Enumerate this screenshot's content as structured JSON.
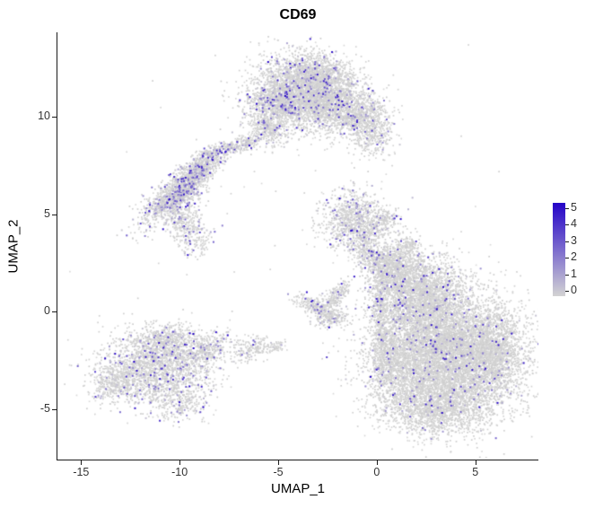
{
  "chart_data": {
    "type": "scatter",
    "title": "CD69",
    "xlabel": "UMAP_1",
    "ylabel": "UMAP_2",
    "xlim": [
      -16.2,
      8.2
    ],
    "ylim": [
      -7.6,
      14.35
    ],
    "x_ticks": [
      -15,
      -10,
      -5,
      0,
      5
    ],
    "y_ticks": [
      -5,
      0,
      5,
      10
    ],
    "grid": false,
    "legend_position": "right",
    "point_color_low": "#d3d3d3",
    "point_color_high": "#2403c8",
    "legend": {
      "tick_values": [
        5,
        4,
        3,
        2,
        1,
        0
      ],
      "vmin": 0,
      "vmax": 5
    },
    "clusters": [
      {
        "cx": -3.8,
        "cy": 11.3,
        "sx": 1.25,
        "sy": 0.95,
        "rot": 0,
        "n": 2600,
        "expr": 0.1
      },
      {
        "cx": -2.2,
        "cy": 10.7,
        "sx": 0.85,
        "sy": 0.7,
        "rot": 0,
        "n": 1000,
        "expr": 0.09
      },
      {
        "cx": -5.1,
        "cy": 10.6,
        "sx": 0.75,
        "sy": 0.6,
        "rot": 0,
        "n": 650,
        "expr": 0.09
      },
      {
        "cx": -3.0,
        "cy": 12.2,
        "sx": 0.95,
        "sy": 0.5,
        "rot": 0,
        "n": 550,
        "expr": 0.08
      },
      {
        "cx": -5.6,
        "cy": 9.4,
        "sx": 0.5,
        "sy": 0.35,
        "rot": -30,
        "n": 250,
        "expr": 0.1
      },
      {
        "cx": -0.35,
        "cy": 9.6,
        "sx": 0.55,
        "sy": 0.8,
        "rot": 10,
        "n": 700,
        "expr": 0.05
      },
      {
        "cx": -1.3,
        "cy": 9.9,
        "sx": 0.4,
        "sy": 0.3,
        "rot": 0,
        "n": 160,
        "expr": 0.06
      },
      {
        "cx": -10.0,
        "cy": 6.2,
        "sx": 1.15,
        "sy": 0.38,
        "rot": 42,
        "n": 1500,
        "expr": 0.2
      },
      {
        "cx": -8.7,
        "cy": 7.6,
        "sx": 0.6,
        "sy": 0.28,
        "rot": 35,
        "n": 350,
        "expr": 0.16
      },
      {
        "cx": -7.2,
        "cy": 8.5,
        "sx": 0.85,
        "sy": 0.22,
        "rot": 18,
        "n": 300,
        "expr": 0.12
      },
      {
        "cx": -9.7,
        "cy": 4.6,
        "sx": 0.45,
        "sy": 0.5,
        "rot": 0,
        "n": 250,
        "expr": 0.12
      },
      {
        "cx": -9.2,
        "cy": 3.6,
        "sx": 0.5,
        "sy": 0.4,
        "rot": 0,
        "n": 120,
        "expr": 0.1
      },
      {
        "cx": -1.2,
        "cy": 4.7,
        "sx": 0.8,
        "sy": 0.75,
        "rot": 0,
        "n": 900,
        "expr": 0.12
      },
      {
        "cx": -0.6,
        "cy": 3.2,
        "sx": 0.35,
        "sy": 0.6,
        "rot": 15,
        "n": 250,
        "expr": 0.08
      },
      {
        "cx": 0.4,
        "cy": 4.6,
        "sx": 0.5,
        "sy": 0.4,
        "rot": 0,
        "n": 180,
        "expr": 0.08
      },
      {
        "cx": 0.2,
        "cy": -0.2,
        "sx": 0.22,
        "sy": 1.8,
        "rot": 0,
        "n": 500,
        "expr": 0.05
      },
      {
        "cx": 0.4,
        "cy": 2.2,
        "sx": 0.3,
        "sy": 0.5,
        "rot": 0,
        "n": 150,
        "expr": 0.06
      },
      {
        "cx": -3.0,
        "cy": 0.15,
        "sx": 0.65,
        "sy": 0.22,
        "rot": -25,
        "n": 260,
        "expr": 0.08
      },
      {
        "cx": -2.1,
        "cy": 0.8,
        "sx": 0.5,
        "sy": 0.2,
        "rot": 48,
        "n": 210,
        "expr": 0.08
      },
      {
        "cx": -2.3,
        "cy": -0.35,
        "sx": 0.45,
        "sy": 0.2,
        "rot": 8,
        "n": 150,
        "expr": 0.08
      },
      {
        "cx": 3.6,
        "cy": -2.2,
        "sx": 1.8,
        "sy": 1.6,
        "rot": 0,
        "n": 7000,
        "expr": 0.035
      },
      {
        "cx": 2.2,
        "cy": 0.8,
        "sx": 1.2,
        "sy": 1.0,
        "rot": 0,
        "n": 2400,
        "expr": 0.05
      },
      {
        "cx": 1.0,
        "cy": 2.2,
        "sx": 0.8,
        "sy": 0.55,
        "rot": -35,
        "n": 800,
        "expr": 0.06
      },
      {
        "cx": 6.0,
        "cy": -2.0,
        "sx": 0.8,
        "sy": 1.0,
        "rot": 0,
        "n": 1100,
        "expr": 0.035
      },
      {
        "cx": 3.0,
        "cy": -4.9,
        "sx": 1.4,
        "sy": 0.75,
        "rot": 0,
        "n": 1400,
        "expr": 0.03
      },
      {
        "cx": 0.8,
        "cy": -2.5,
        "sx": 0.55,
        "sy": 1.0,
        "rot": 0,
        "n": 700,
        "expr": 0.04
      },
      {
        "cx": 1.6,
        "cy": 3.3,
        "sx": 0.35,
        "sy": 0.3,
        "rot": 0,
        "n": 150,
        "expr": 0.06
      },
      {
        "cx": -11.2,
        "cy": -2.8,
        "sx": 1.4,
        "sy": 0.9,
        "rot": 0,
        "n": 1800,
        "expr": 0.1
      },
      {
        "cx": -13.2,
        "cy": -3.6,
        "sx": 0.7,
        "sy": 0.5,
        "rot": 20,
        "n": 400,
        "expr": 0.08
      },
      {
        "cx": -10.6,
        "cy": -1.5,
        "sx": 0.8,
        "sy": 0.45,
        "rot": 0,
        "n": 420,
        "expr": 0.12
      },
      {
        "cx": -10.2,
        "cy": -4.6,
        "sx": 0.8,
        "sy": 0.5,
        "rot": -10,
        "n": 320,
        "expr": 0.08
      },
      {
        "cx": -8.6,
        "cy": -2.0,
        "sx": 0.75,
        "sy": 0.45,
        "rot": 20,
        "n": 380,
        "expr": 0.1
      },
      {
        "cx": -6.3,
        "cy": -1.9,
        "sx": 0.5,
        "sy": 0.3,
        "rot": 10,
        "n": 170,
        "expr": 0.08
      },
      {
        "cx": -5.1,
        "cy": -1.8,
        "sx": 0.2,
        "sy": 0.15,
        "rot": 0,
        "n": 50,
        "expr": 0.05
      },
      {
        "cx": -4.0,
        "cy": 6.5,
        "sx": 6.0,
        "sy": 5.0,
        "rot": 0,
        "n": 80,
        "expr": 0.05
      }
    ]
  }
}
